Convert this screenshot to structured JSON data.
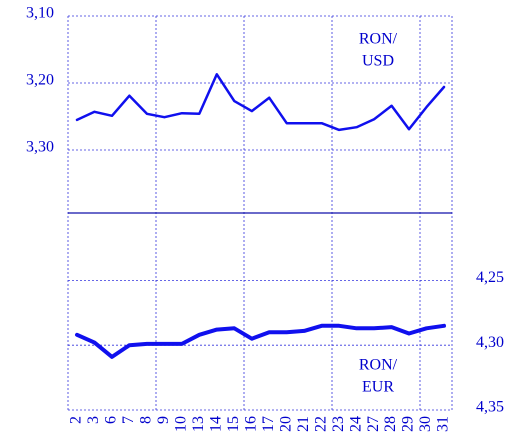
{
  "chart_data": {
    "type": "line",
    "categories": [
      "2",
      "3",
      "6",
      "7",
      "8",
      "9",
      "10",
      "13",
      "14",
      "15",
      "16",
      "17",
      "20",
      "21",
      "22",
      "23",
      "24",
      "27",
      "28",
      "29",
      "30",
      "31"
    ],
    "y_inverted": true,
    "ylim": [
      3.1,
      3.394
    ],
    "yticks": [
      {
        "value": 3.1,
        "label": "3,10"
      },
      {
        "value": 3.2,
        "label": "3,20"
      },
      {
        "value": 3.3,
        "label": "3,30"
      }
    ],
    "y2lim": [
      4.198,
      4.35
    ],
    "y2ticks": [
      {
        "value": 4.25,
        "label": "4,25"
      },
      {
        "value": 4.3,
        "label": "4,30"
      },
      {
        "value": 4.35,
        "label": "4,35"
      }
    ],
    "grid": true,
    "series": [
      {
        "name_lines": [
          "RON/",
          "USD"
        ],
        "color": "#1010ee",
        "axis": "y",
        "values": [
          3.255,
          3.243,
          3.249,
          3.219,
          3.246,
          3.251,
          3.245,
          3.246,
          3.187,
          3.227,
          3.242,
          3.222,
          3.26,
          3.26,
          3.26,
          3.27,
          3.266,
          3.254,
          3.234,
          3.269,
          3.236,
          3.206
        ]
      },
      {
        "name_lines": [
          "RON/",
          "EUR"
        ],
        "color": "#1010ee",
        "axis": "y2",
        "values": [
          4.292,
          4.298,
          4.309,
          4.3,
          4.299,
          4.299,
          4.299,
          4.292,
          4.288,
          4.287,
          4.295,
          4.29,
          4.29,
          4.289,
          4.285,
          4.285,
          4.287,
          4.287,
          4.286,
          4.291,
          4.287,
          4.285
        ]
      }
    ]
  }
}
